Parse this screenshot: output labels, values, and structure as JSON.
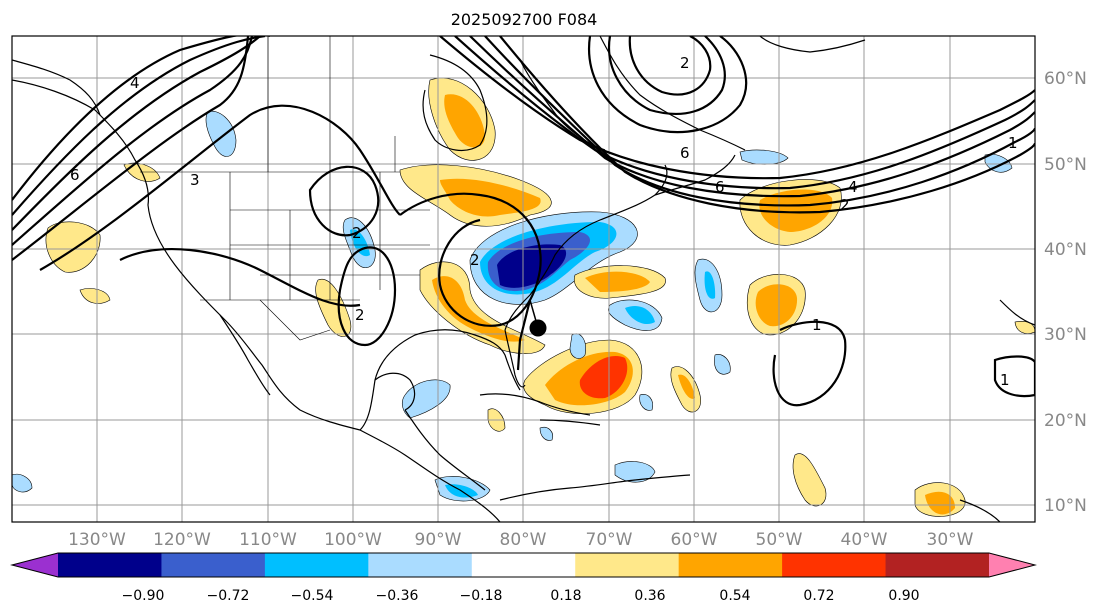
{
  "title": "2025092700 F084",
  "map": {
    "lon_range": [
      -140,
      -20
    ],
    "lat_range": [
      8,
      65
    ],
    "lon_ticks": [
      "130°W",
      "120°W",
      "110°W",
      "100°W",
      "90°W",
      "80°W",
      "70°W",
      "60°W",
      "50°W",
      "40°W",
      "30°W"
    ],
    "lat_ticks": [
      "10°N",
      "20°N",
      "30°N",
      "40°N",
      "50°N",
      "60°N"
    ],
    "gridlines": true,
    "contour_labels": [
      "4",
      "3",
      "6",
      "2",
      "2",
      "2",
      "6",
      "2",
      "6",
      "1",
      "4",
      "2",
      "1",
      "1"
    ]
  },
  "storm_center": {
    "lon": -77.5,
    "lat": 31.0
  },
  "colorbar": {
    "levels": [
      "−0.90",
      "−0.72",
      "−0.54",
      "−0.36",
      "−0.18",
      "0.18",
      "0.36",
      "0.54",
      "0.72",
      "0.90"
    ],
    "colors": [
      "#9b30d0",
      "#00008b",
      "#3a5fcd",
      "#00bfff",
      "#aadcff",
      "#ffffff",
      "#ffe88a",
      "#ffa500",
      "#ff3300",
      "#b22222",
      "#ff80b0"
    ],
    "extend": "both"
  }
}
